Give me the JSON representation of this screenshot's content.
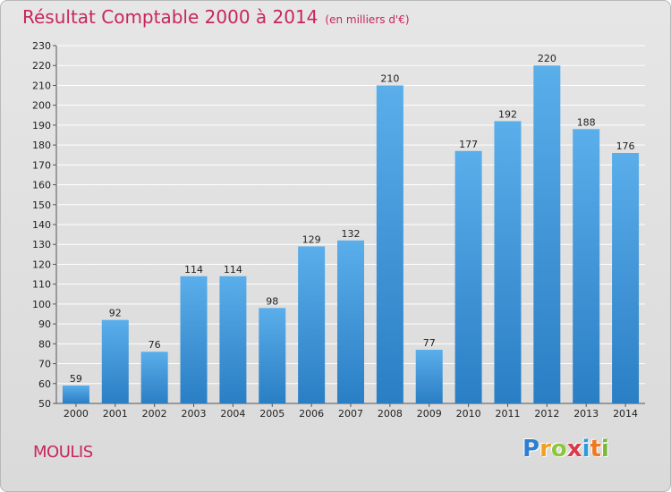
{
  "title": "Résultat Comptable 2000 à 2014",
  "subtitle": "(en milliers d'€)",
  "commune": "MOULIS",
  "brand": {
    "letters": [
      "P",
      "r",
      "o",
      "x",
      "i",
      "t",
      "i"
    ],
    "colors": [
      "#2f7fcf",
      "#f0a020",
      "#8cc63f",
      "#d83a4a",
      "#2f9ad8",
      "#f07820",
      "#7ab83a"
    ]
  },
  "colors": {
    "title": "#c8265a",
    "bar_light": "#5aaeea",
    "bar_dark": "#2a7ec4",
    "grid": "#ffffff"
  },
  "chart_data": {
    "type": "bar",
    "categories": [
      "2000",
      "2001",
      "2002",
      "2003",
      "2004",
      "2005",
      "2006",
      "2007",
      "2008",
      "2009",
      "2010",
      "2011",
      "2012",
      "2013",
      "2014"
    ],
    "values": [
      59,
      92,
      76,
      114,
      114,
      98,
      129,
      132,
      210,
      77,
      177,
      192,
      220,
      188,
      176
    ],
    "ylim": [
      50,
      230
    ],
    "yticks": [
      50,
      60,
      70,
      80,
      90,
      100,
      110,
      120,
      130,
      140,
      150,
      160,
      170,
      180,
      190,
      200,
      210,
      220,
      230
    ],
    "grid": true,
    "data_labels": true
  }
}
